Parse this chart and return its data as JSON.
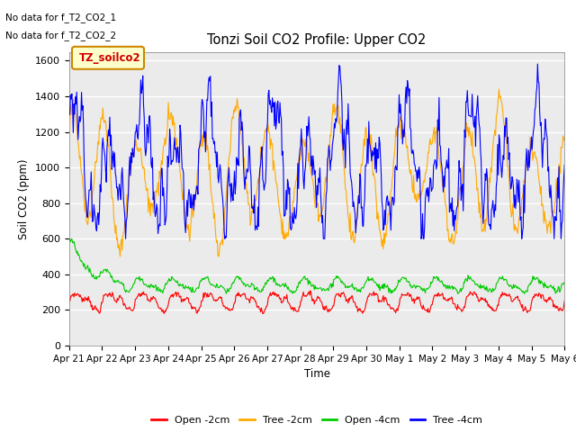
{
  "title": "Tonzi Soil CO2 Profile: Upper CO2",
  "xlabel": "Time",
  "ylabel": "Soil CO2 (ppm)",
  "ylim": [
    0,
    1650
  ],
  "yticks": [
    0,
    200,
    400,
    600,
    800,
    1000,
    1200,
    1400,
    1600
  ],
  "no_data_text": [
    "No data for f_T2_CO2_1",
    "No data for f_T2_CO2_2"
  ],
  "legend_label": "TZ_soilco2",
  "legend_entries": [
    "Open -2cm",
    "Tree -2cm",
    "Open -4cm",
    "Tree -4cm"
  ],
  "legend_colors": [
    "#ff0000",
    "#ffaa00",
    "#00cc00",
    "#0000ff"
  ],
  "background_plot": "#ebebeb",
  "background_axes": "#ffffff",
  "n_points": 720,
  "xtick_labels": [
    "Apr 21",
    "Apr 22",
    "Apr 23",
    "Apr 24",
    "Apr 25",
    "Apr 26",
    "Apr 27",
    "Apr 28",
    "Apr 29",
    "Apr 30",
    "May 1",
    "May 2",
    "May 3",
    "May 4",
    "May 5",
    "May 6"
  ]
}
